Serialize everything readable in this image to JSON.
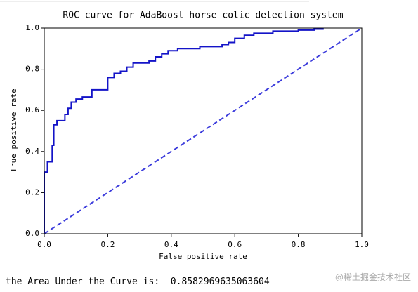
{
  "chart_data": {
    "type": "line",
    "title": "ROC curve for AdaBoost horse colic detection system",
    "xlabel": "False positive rate",
    "ylabel": "True positive rate",
    "series": [
      {
        "color": "#1414c8",
        "dash": false,
        "x": [
          0,
          0,
          0.01,
          0.01,
          0.025,
          0.025,
          0.03,
          0.03,
          0.04,
          0.04,
          0.065,
          0.065,
          0.075,
          0.075,
          0.085,
          0.085,
          0.1,
          0.1,
          0.12,
          0.12,
          0.15,
          0.15,
          0.2,
          0.2,
          0.22,
          0.22,
          0.24,
          0.24,
          0.26,
          0.26,
          0.28,
          0.28,
          0.33,
          0.33,
          0.35,
          0.35,
          0.37,
          0.37,
          0.39,
          0.39,
          0.42,
          0.42,
          0.49,
          0.49,
          0.56,
          0.56,
          0.58,
          0.58,
          0.6,
          0.6,
          0.63,
          0.63,
          0.66,
          0.66,
          0.72,
          0.72,
          0.8,
          0.8,
          0.85,
          0.85,
          0.88
        ],
        "values": [
          0,
          0.3,
          0.3,
          0.35,
          0.35,
          0.43,
          0.43,
          0.53,
          0.53,
          0.55,
          0.55,
          0.58,
          0.58,
          0.61,
          0.61,
          0.64,
          0.64,
          0.655,
          0.655,
          0.665,
          0.665,
          0.7,
          0.7,
          0.76,
          0.76,
          0.78,
          0.78,
          0.79,
          0.79,
          0.81,
          0.81,
          0.83,
          0.83,
          0.84,
          0.84,
          0.86,
          0.86,
          0.875,
          0.875,
          0.89,
          0.89,
          0.9,
          0.9,
          0.91,
          0.91,
          0.92,
          0.92,
          0.93,
          0.93,
          0.95,
          0.95,
          0.965,
          0.965,
          0.975,
          0.975,
          0.985,
          0.985,
          0.99,
          0.99,
          0.995,
          0.995
        ]
      },
      {
        "color": "#3c3cdc",
        "dash": true,
        "x": [
          0,
          1
        ],
        "values": [
          0,
          1
        ]
      }
    ],
    "xlim": [
      0,
      1
    ],
    "ylim": [
      0,
      1
    ],
    "xticks": [
      {
        "value": 0,
        "label": "0.0"
      },
      0.2,
      0.4,
      0.6,
      0.8,
      {
        "value": 1,
        "label": "1.0"
      }
    ],
    "yticks": [
      {
        "value": 0,
        "label": "0.0"
      },
      0.2,
      0.4,
      0.6,
      0.8,
      {
        "value": 1,
        "label": "1.0"
      }
    ],
    "grid": false
  },
  "console_output": "the Area Under the Curve is:  0.8582969635063604",
  "watermark": "@稀土掘金技术社区"
}
